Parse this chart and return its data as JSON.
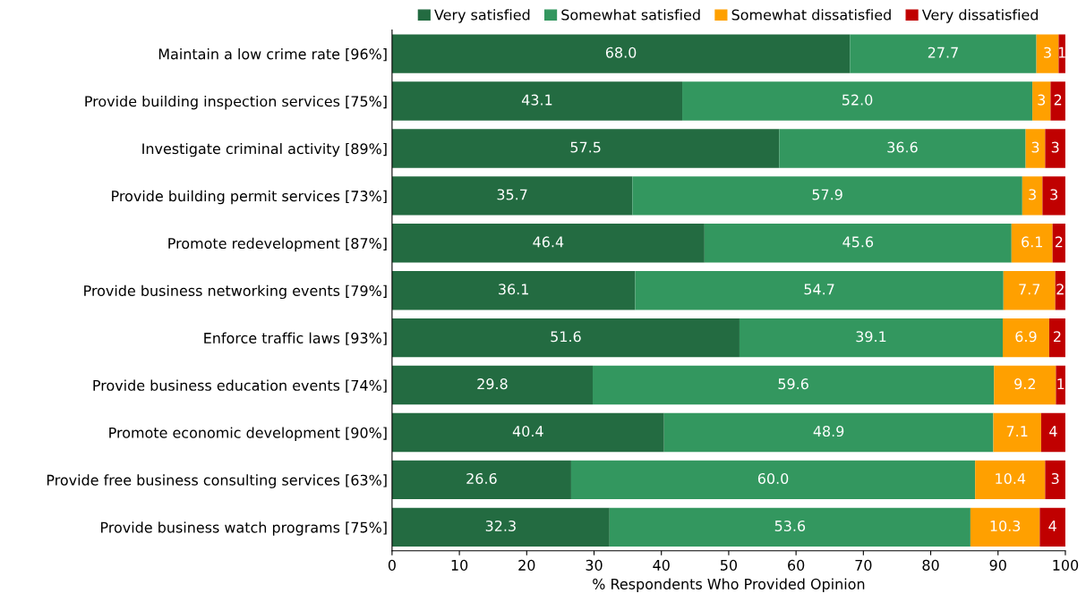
{
  "chart_data": {
    "type": "bar",
    "orientation": "horizontal",
    "stacked": true,
    "categories": [
      "Maintain a low crime rate [96%]",
      "Provide building inspection services [75%]",
      "Investigate criminal activity [89%]",
      "Provide building permit services [73%]",
      "Promote redevelopment [87%]",
      "Provide business networking events [79%]",
      "Enforce traffic laws [93%]",
      "Provide business education events [74%]",
      "Promote economic development [90%]",
      "Provide free business consulting services [63%]",
      "Provide business watch programs [75%]"
    ],
    "series": [
      {
        "name": "Very satisfied",
        "color": "#236b41",
        "values": [
          68.0,
          43.1,
          57.5,
          35.7,
          46.4,
          36.1,
          51.6,
          29.8,
          40.4,
          26.6,
          32.3
        ],
        "value_labels": [
          "68.0",
          "43.1",
          "57.5",
          "35.7",
          "46.4",
          "36.1",
          "51.6",
          "29.8",
          "40.4",
          "26.6",
          "32.3"
        ]
      },
      {
        "name": "Somewhat satisfied",
        "color": "#33975f",
        "values": [
          27.7,
          52.0,
          36.6,
          57.9,
          45.6,
          54.7,
          39.1,
          59.6,
          48.9,
          60.0,
          53.6
        ],
        "value_labels": [
          "27.7",
          "52.0",
          "36.6",
          "57.9",
          "45.6",
          "54.7",
          "39.1",
          "59.6",
          "48.9",
          "60.0",
          "53.6"
        ]
      },
      {
        "name": "Somewhat dissatisfied",
        "color": "#ffa000",
        "values": [
          3.3,
          2.7,
          2.9,
          3.0,
          6.1,
          7.7,
          6.9,
          9.2,
          7.1,
          10.4,
          10.3
        ],
        "value_labels": [
          "3",
          "3",
          "3",
          "3",
          "6.1",
          "7.7",
          "6.9",
          "9.2",
          "7.1",
          "10.4",
          "10.3"
        ]
      },
      {
        "name": "Very dissatisfied",
        "color": "#c00000",
        "values": [
          1.0,
          2.2,
          3.0,
          3.4,
          1.9,
          1.5,
          2.4,
          1.4,
          3.6,
          3.0,
          3.8
        ],
        "value_labels": [
          "1",
          "2",
          "3",
          "3",
          "2",
          "2",
          "2",
          "1",
          "4",
          "3",
          "4"
        ]
      }
    ],
    "xlim": [
      0,
      100
    ],
    "xticks": [
      0,
      10,
      20,
      30,
      40,
      50,
      60,
      70,
      80,
      90,
      100
    ],
    "xlabel": "% Respondents Who Provided Opinion",
    "legend": "top",
    "grid": false
  }
}
